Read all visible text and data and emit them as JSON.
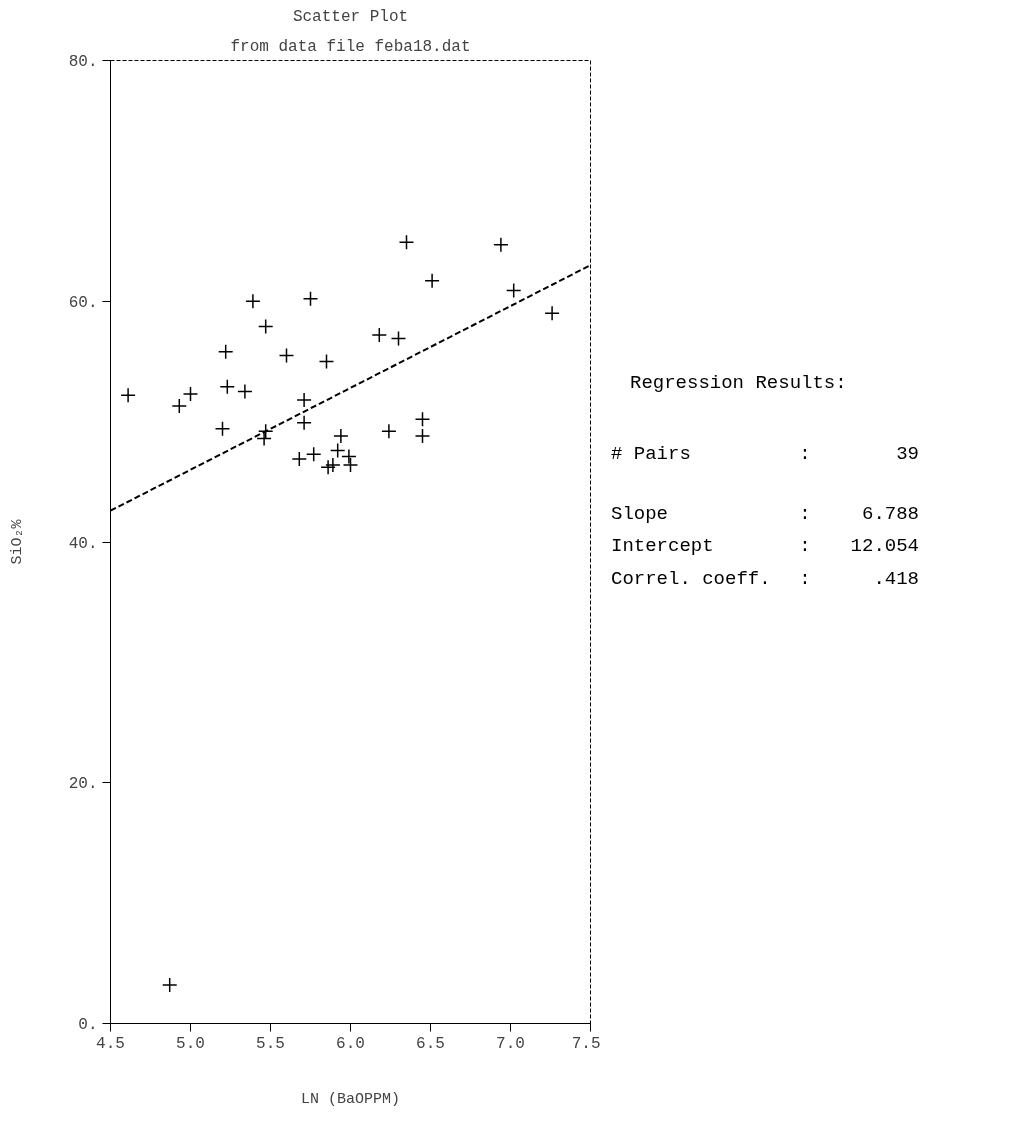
{
  "chart_data": {
    "type": "scatter",
    "title": "Scatter Plot",
    "subtitle": "from data file feba18.dat",
    "xlabel": "LN (BaOPPM)",
    "ylabel": "SiO₂%",
    "xlim": [
      4.5,
      7.5
    ],
    "ylim": [
      0,
      80
    ],
    "xticks": [
      4.5,
      {
        "value": 5,
        "label": "5.0"
      },
      5.5,
      {
        "value": 6,
        "label": "6.0"
      },
      6.5,
      {
        "value": 7,
        "label": "7.0"
      },
      7.5
    ],
    "yticks": [
      {
        "value": 0,
        "label": "0."
      },
      {
        "value": 20,
        "label": "20."
      },
      {
        "value": 40,
        "label": "40."
      },
      {
        "value": 60,
        "label": "60."
      },
      {
        "value": 80,
        "label": "80."
      }
    ],
    "grid": false,
    "marker": "cross",
    "series": [
      {
        "color": "#000000",
        "x": [
          4.61,
          4.93,
          5.0,
          5.22,
          5.23,
          5.34,
          5.2,
          5.39,
          5.47,
          5.47,
          5.46,
          5.6,
          5.75,
          5.85,
          5.71,
          5.71,
          5.68,
          5.77,
          5.89,
          5.86,
          5.94,
          5.92,
          5.99,
          6.0,
          6.24,
          6.45,
          6.45,
          6.18,
          6.3,
          6.35,
          6.51,
          6.94,
          7.02,
          7.26,
          4.87
        ],
        "values": [
          52.2,
          51.3,
          52.3,
          55.8,
          52.9,
          52.5,
          49.4,
          60.0,
          57.9,
          49.2,
          48.6,
          55.5,
          60.2,
          55.0,
          51.8,
          49.9,
          46.9,
          47.3,
          46.4,
          46.2,
          48.8,
          47.6,
          47.1,
          46.4,
          49.2,
          50.2,
          48.8,
          57.2,
          56.9,
          64.9,
          61.7,
          64.7,
          60.9,
          59.0,
          3.2
        ]
      },
      {
        "type": "line",
        "color": "#000000",
        "line_style": "dashed",
        "marker": "none",
        "x": [
          4.5,
          7.5
        ],
        "values": [
          42.6,
          63.0
        ]
      }
    ],
    "annotations": [
      "Regression Results:",
      "# Pairs",
      ":",
      "39",
      "Slope",
      ":",
      "6.788",
      "Intercept",
      ":",
      "12.054",
      "Correl. coeff.",
      ":",
      ".418"
    ]
  }
}
